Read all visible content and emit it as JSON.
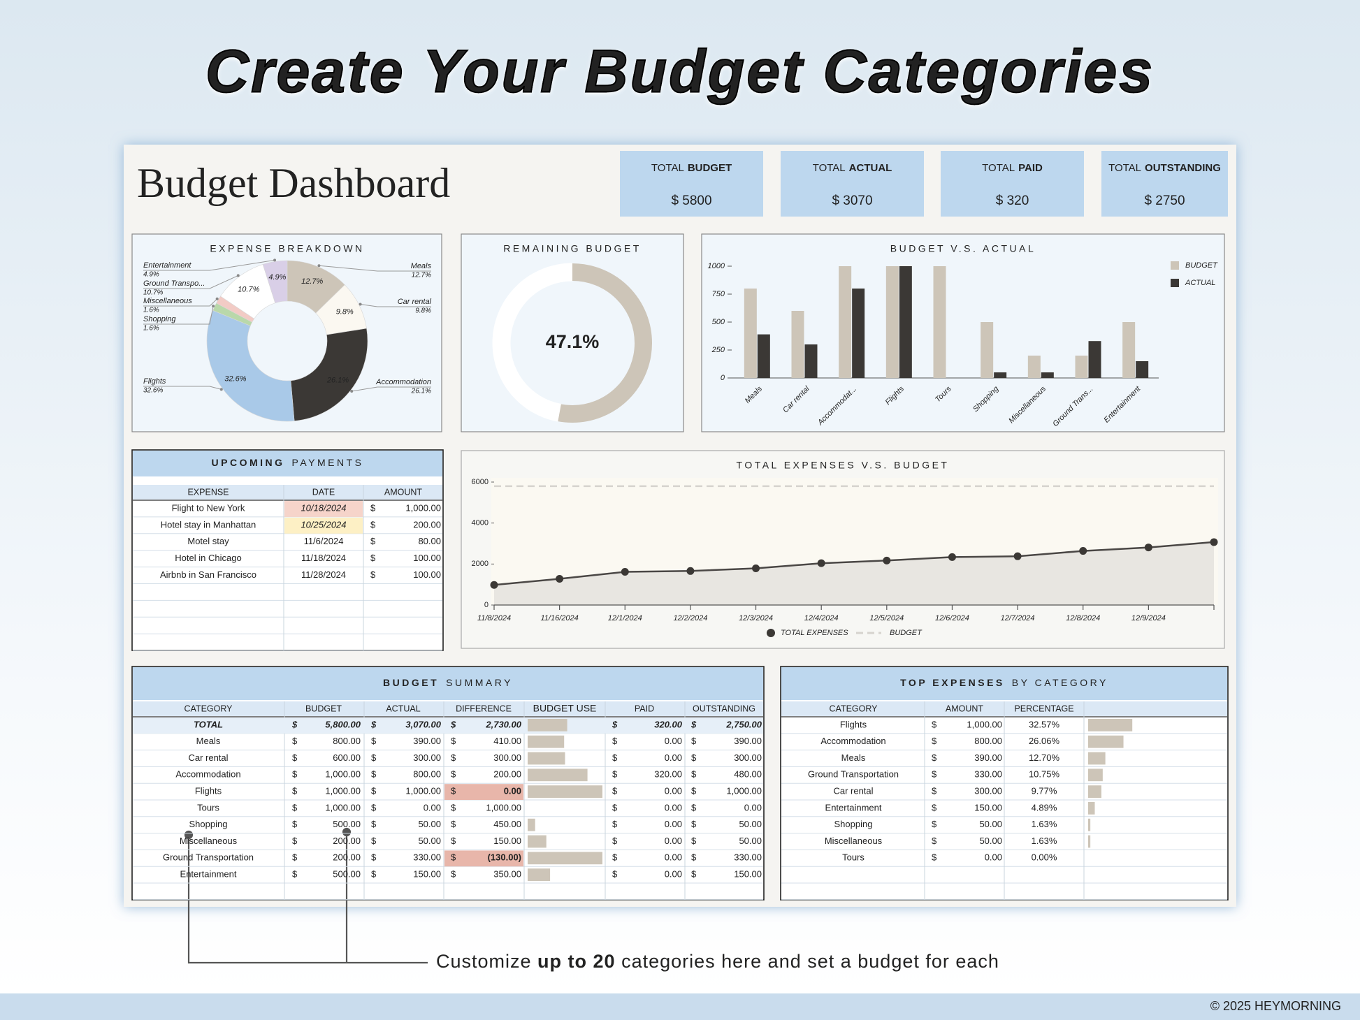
{
  "header": {
    "title": "Create Your Budget Categories"
  },
  "dashboard": {
    "title": "Budget Dashboard",
    "kpis": [
      {
        "prefix": "TOTAL",
        "label": "BUDGET",
        "value": "$ 5800"
      },
      {
        "prefix": "TOTAL",
        "label": "ACTUAL",
        "value": "$ 3070"
      },
      {
        "prefix": "TOTAL",
        "label": "PAID",
        "value": "$ 320"
      },
      {
        "prefix": "TOTAL",
        "label": "OUTSTANDING",
        "value": "$ 2750"
      }
    ]
  },
  "chart_data": [
    {
      "type": "pie",
      "title": "EXPENSE BREAKDOWN",
      "categories": [
        "Meals",
        "Car rental",
        "Accommodation",
        "Flights",
        "Shopping",
        "Miscellaneous",
        "Ground Transpo...",
        "Entertainment"
      ],
      "values": [
        12.7,
        9.8,
        26.1,
        32.6,
        1.6,
        1.6,
        10.7,
        4.9
      ],
      "value_labels": [
        "12.7%",
        "9.8%",
        "26.1%",
        "32.6%",
        "1.6%",
        "1.6%",
        "10.7%",
        "4.9%"
      ],
      "colors": [
        "#cdc5b8",
        "#fbf8f1",
        "#3b3835",
        "#a9c9e8",
        "#b9d8aa",
        "#f2cbc5",
        "#ffffff",
        "#d9cfe7"
      ]
    },
    {
      "type": "donut",
      "title": "REMAINING BUDGET",
      "value": 47.1,
      "value_label": "47.1%",
      "range": [
        0,
        100
      ],
      "color": "#ffffff",
      "track_color": "#cdc5b8"
    },
    {
      "type": "bar",
      "title": "BUDGET V.S. ACTUAL",
      "categories": [
        "Meals",
        "Car rental",
        "Accommodat...",
        "Flights",
        "Tours",
        "Shopping",
        "Miscellaneous",
        "Ground Trans...",
        "Entertainment"
      ],
      "series": [
        {
          "name": "BUDGET",
          "color": "#cdc5b8",
          "values": [
            800,
            600,
            1000,
            1000,
            1000,
            500,
            200,
            200,
            500
          ]
        },
        {
          "name": "ACTUAL",
          "color": "#3b3835",
          "values": [
            390,
            300,
            800,
            1000,
            0,
            50,
            50,
            330,
            150
          ]
        }
      ],
      "ylim": [
        0,
        1000
      ],
      "yticks": [
        0,
        250,
        500,
        750,
        1000
      ],
      "legend": "right"
    },
    {
      "type": "line",
      "title": "TOTAL EXPENSES V.S. BUDGET",
      "categories": [
        "11/8/2024",
        "11/16/2024",
        "12/1/2024",
        "12/2/2024",
        "12/3/2024",
        "12/4/2024",
        "12/5/2024",
        "12/6/2024",
        "12/7/2024",
        "12/8/2024",
        "12/9/2024",
        null
      ],
      "series": [
        {
          "name": "TOTAL EXPENSES",
          "color": "#4a4745",
          "values": [
            980,
            1280,
            1620,
            1660,
            1790,
            2040,
            2170,
            2340,
            2380,
            2640,
            2810,
            3070
          ]
        },
        {
          "name": "BUDGET",
          "color": "#d6d3ce",
          "dashed": true,
          "values": [
            5800,
            5800,
            5800,
            5800,
            5800,
            5800,
            5800,
            5800,
            5800,
            5800,
            5800,
            5800
          ]
        }
      ],
      "ylim": [
        0,
        6000
      ],
      "yticks": [
        0,
        2000,
        4000,
        6000
      ],
      "legend": "bottom"
    }
  ],
  "upcoming_payments": {
    "title_bold": "UPCOMING",
    "title": "PAYMENTS",
    "columns": [
      "EXPENSE",
      "DATE",
      "AMOUNT"
    ],
    "currency": "$",
    "rows": [
      [
        "Flight to New York",
        "10/18/2024",
        "1,000.00"
      ],
      [
        "Hotel stay in Manhattan",
        "10/25/2024",
        "200.00"
      ],
      [
        "Motel stay",
        "11/6/2024",
        "80.00"
      ],
      [
        "Hotel in Chicago",
        "11/18/2024",
        "100.00"
      ],
      [
        "Airbnb in San Francisco",
        "11/28/2024",
        "100.00"
      ]
    ],
    "date_colors": [
      "#f6d4ca",
      "#fdf0c5",
      null,
      null,
      null
    ]
  },
  "budget_summary": {
    "title_bold": "BUDGET",
    "title": "SUMMARY",
    "columns": [
      "CATEGORY",
      "BUDGET",
      "ACTUAL",
      "DIFFERENCE",
      "BUDGET USE",
      "PAID",
      "OUTSTANDING"
    ],
    "currency": "$",
    "rows": [
      [
        "TOTAL",
        "5,800.00",
        "3,070.00",
        "2,730.00",
        "320.00",
        "2,750.00"
      ],
      [
        "Meals",
        "800.00",
        "390.00",
        "410.00",
        "0.00",
        "390.00"
      ],
      [
        "Car rental",
        "600.00",
        "300.00",
        "300.00",
        "0.00",
        "300.00"
      ],
      [
        "Accommodation",
        "1,000.00",
        "800.00",
        "200.00",
        "320.00",
        "480.00"
      ],
      [
        "Flights",
        "1,000.00",
        "1,000.00",
        "0.00",
        "0.00",
        "1,000.00"
      ],
      [
        "Tours",
        "1,000.00",
        "0.00",
        "1,000.00",
        "0.00",
        "0.00"
      ],
      [
        "Shopping",
        "500.00",
        "50.00",
        "450.00",
        "0.00",
        "50.00"
      ],
      [
        "Miscellaneous",
        "200.00",
        "50.00",
        "150.00",
        "0.00",
        "50.00"
      ],
      [
        "Ground Transportation",
        "200.00",
        "330.00",
        "(130.00)",
        "0.00",
        "330.00"
      ],
      [
        "Entertainment",
        "500.00",
        "150.00",
        "350.00",
        "0.00",
        "150.00"
      ]
    ],
    "difference_colors": [
      null,
      null,
      null,
      null,
      "#e8b6aa",
      null,
      null,
      null,
      "#e8b6aa",
      null
    ],
    "budget_use": [
      52.9,
      48.8,
      50,
      80,
      100,
      0,
      10,
      25,
      100,
      30
    ],
    "xlim": [
      0,
      100
    ],
    "bar_color": "#cdc5b8"
  },
  "top_expenses": {
    "title_bold": "TOP EXPENSES",
    "title": "BY CATEGORY",
    "columns": [
      "CATEGORY",
      "AMOUNT",
      "PERCENTAGE"
    ],
    "currency": "$",
    "rows": [
      [
        "Flights",
        "1,000.00",
        "32.57%"
      ],
      [
        "Accommodation",
        "800.00",
        "26.06%"
      ],
      [
        "Meals",
        "390.00",
        "12.70%"
      ],
      [
        "Ground Transportation",
        "330.00",
        "10.75%"
      ],
      [
        "Car rental",
        "300.00",
        "9.77%"
      ],
      [
        "Entertainment",
        "150.00",
        "4.89%"
      ],
      [
        "Shopping",
        "50.00",
        "1.63%"
      ],
      [
        "Miscellaneous",
        "50.00",
        "1.63%"
      ],
      [
        "Tours",
        "0.00",
        "0.00%"
      ]
    ],
    "bars": [
      32.57,
      26.06,
      12.7,
      10.75,
      9.77,
      4.89,
      1.63,
      1.63,
      0
    ],
    "xlim": [
      0,
      100
    ],
    "bar_color": "#cdc5b8"
  },
  "callout": {
    "before": "Customize ",
    "bold": "up to 20",
    "after": " categories here and set a budget for each"
  },
  "footer": {
    "copyright": "© 2025 HEYMORNING"
  }
}
